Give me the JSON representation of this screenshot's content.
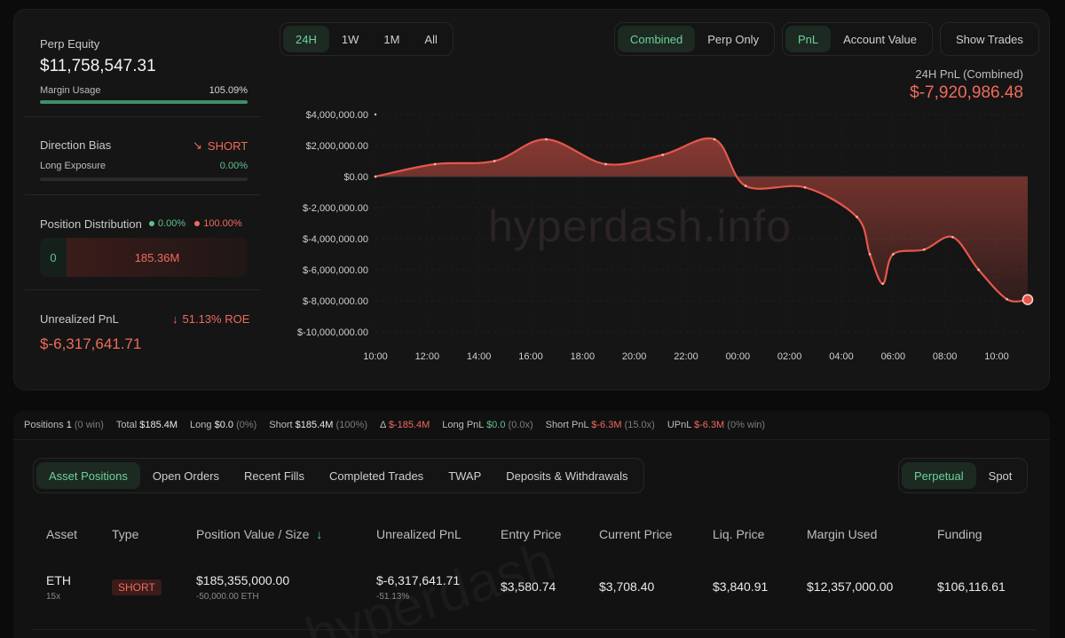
{
  "left": {
    "perp_equity_label": "Perp Equity",
    "perp_equity_value": "$11,758,547.31",
    "margin_usage_label": "Margin Usage",
    "margin_usage_value": "105.09%",
    "margin_usage_fraction": 1.0,
    "direction_bias_label": "Direction Bias",
    "direction_bias_value": "SHORT",
    "long_exposure_label": "Long Exposure",
    "long_exposure_value": "0.00%",
    "long_exposure_fraction": 0.0,
    "position_distribution_label": "Position Distribution",
    "dist_long_pct": "0.00%",
    "dist_short_pct": "100.00%",
    "dist_long_amount": "0",
    "dist_short_amount": "185.36M",
    "unrealized_pnl_label": "Unrealized PnL",
    "roe_value": "51.13% ROE",
    "unrealized_pnl_value": "$-6,317,641.71"
  },
  "range_tabs": [
    "24H",
    "1W",
    "1M",
    "All"
  ],
  "range_active": "24H",
  "mode_tabs": [
    "Combined",
    "Perp Only"
  ],
  "mode_active": "Combined",
  "metric_tabs": [
    "PnL",
    "Account Value"
  ],
  "metric_active": "PnL",
  "show_trades_label": "Show Trades",
  "pnl_header_label": "24H PnL (Combined)",
  "pnl_header_value": "$-7,920,986.48",
  "watermark": "hyperdash.info",
  "chart_data": {
    "type": "area",
    "ylim": [
      -10000000,
      4000000
    ],
    "y_ticks": [
      4000000,
      2000000,
      0,
      -2000000,
      -4000000,
      -6000000,
      -8000000,
      -10000000
    ],
    "y_tick_labels": [
      "$4,000,000.00",
      "$2,000,000.00",
      "$0.00",
      "$-2,000,000.00",
      "$-4,000,000.00",
      "$-6,000,000.00",
      "$-8,000,000.00",
      "$-10,000,000.00"
    ],
    "x_ticks": [
      0,
      2,
      4,
      6,
      8,
      10,
      12,
      14,
      16,
      18,
      20,
      22,
      24
    ],
    "x_tick_labels": [
      "10:00",
      "12:00",
      "14:00",
      "16:00",
      "18:00",
      "20:00",
      "22:00",
      "00:00",
      "02:00",
      "04:00",
      "06:00",
      "08:00",
      "10:00"
    ],
    "x_range": [
      0,
      25.2
    ],
    "series": [
      {
        "x": [
          0,
          2.3,
          4.6,
          6.6,
          8.9,
          11.1,
          13.1,
          14.3,
          16.6,
          18.6,
          19.1,
          19.6,
          20.0,
          21.2,
          22.3,
          23.3,
          24.4,
          25.2
        ],
        "y": [
          0,
          800000,
          1000000,
          2400000,
          800000,
          1400000,
          2400000,
          -600000,
          -700000,
          -2600000,
          -5000000,
          -6900000,
          -5000000,
          -4700000,
          -3900000,
          -6000000,
          -7900000,
          -7920986
        ]
      }
    ],
    "grid": true
  },
  "stats": {
    "positions_label": "Positions",
    "positions_value": "1",
    "positions_note": "(0 win)",
    "total_label": "Total",
    "total_value": "$185.4M",
    "long_label": "Long",
    "long_value": "$0.0",
    "long_note": "(0%)",
    "short_label": "Short",
    "short_value": "$185.4M",
    "short_note": "(100%)",
    "delta_label": "Δ",
    "delta_value": "$-185.4M",
    "long_pnl_label": "Long PnL",
    "long_pnl_value": "$0.0",
    "long_pnl_note": "(0.0x)",
    "short_pnl_label": "Short PnL",
    "short_pnl_value": "$-6.3M",
    "short_pnl_note": "(15.0x)",
    "upnl_label": "UPnL",
    "upnl_value": "$-6.3M",
    "upnl_note": "(0% win)"
  },
  "bottom_tabs": [
    "Asset Positions",
    "Open Orders",
    "Recent Fills",
    "Completed Trades",
    "TWAP",
    "Deposits & Withdrawals"
  ],
  "bottom_tab_active": "Asset Positions",
  "market_tabs": [
    "Perpetual",
    "Spot"
  ],
  "market_active": "Perpetual",
  "table": {
    "headers": [
      "Asset",
      "Type",
      "Position Value / Size",
      "Unrealized PnL",
      "Entry Price",
      "Current Price",
      "Liq. Price",
      "Margin Used",
      "Funding"
    ],
    "rows": [
      {
        "asset": "ETH",
        "leverage": "15x",
        "type": "SHORT",
        "position_value": "$185,355,000.00",
        "size": "-50,000.00 ETH",
        "unrealized_pnl": "$-6,317,641.71",
        "unrealized_pct": "-51.13%",
        "entry_price": "$3,580.74",
        "current_price": "$3,708.40",
        "liq_price": "$3,840.91",
        "margin_used": "$12,357,000.00",
        "funding": "$106,116.61"
      }
    ]
  },
  "bottom_watermark": "hyperdash",
  "colors": {
    "green": "#5ec28e",
    "red": "#ef6b5c",
    "line": "#e5574b"
  }
}
